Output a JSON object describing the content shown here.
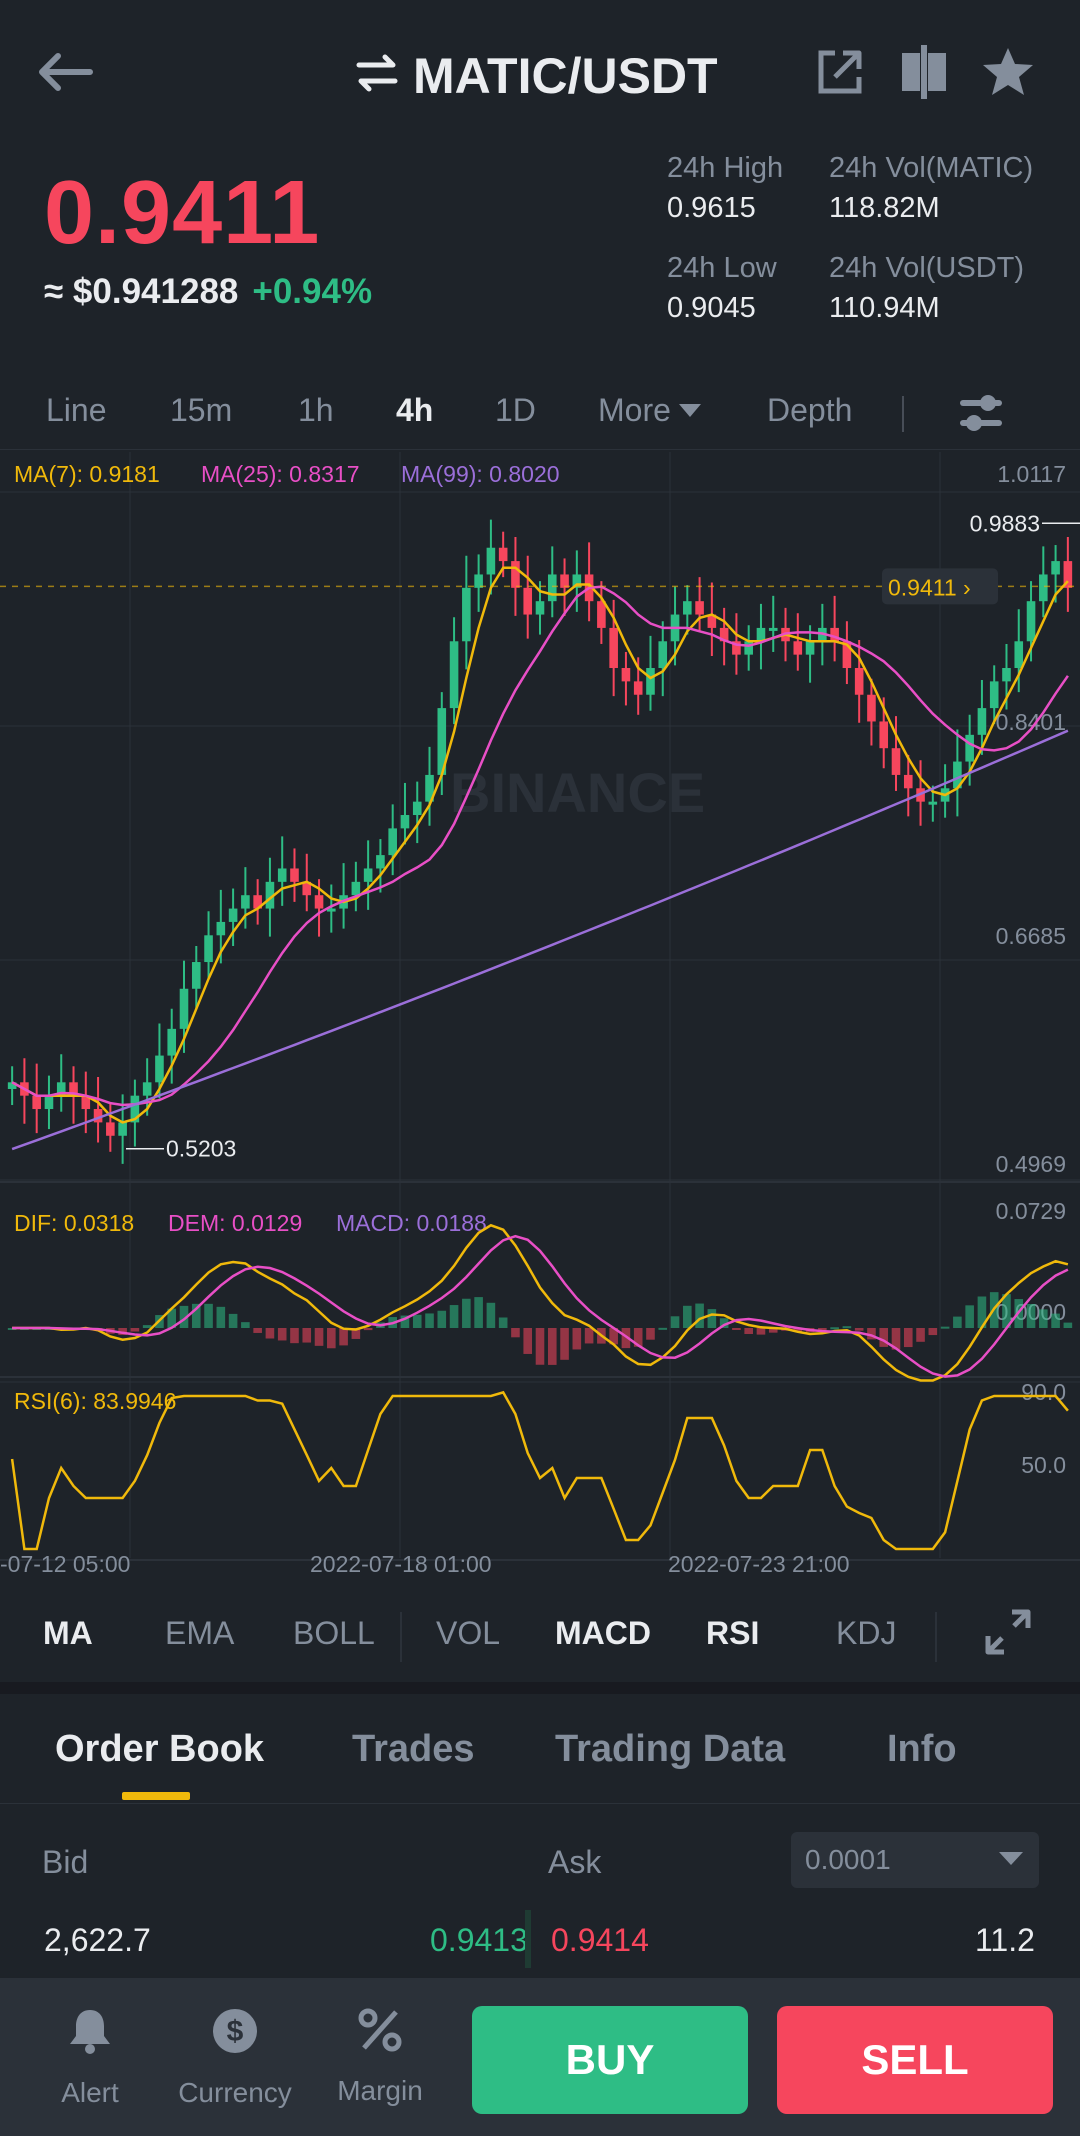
{
  "header": {
    "pair": "MATIC/USDT"
  },
  "ticker": {
    "last_price": "0.9411",
    "usd_price": "≈ $0.941288",
    "change_pct": "+0.94%",
    "stats": [
      {
        "label": "24h High",
        "value": "0.9615"
      },
      {
        "label": "24h Vol(MATIC)",
        "value": "118.82M"
      },
      {
        "label": "24h Low",
        "value": "0.9045"
      },
      {
        "label": "24h Vol(USDT)",
        "value": "110.94M"
      }
    ]
  },
  "timeframes": {
    "items": [
      "Line",
      "15m",
      "1h",
      "4h",
      "1D",
      "More",
      "Depth"
    ],
    "active": "4h"
  },
  "chart": {
    "watermark": "BINANCE",
    "ma_legend": [
      {
        "label": "MA(7): 0.9181",
        "color": "#f0b90b"
      },
      {
        "label": "MA(25): 0.8317",
        "color": "#e84fc6"
      },
      {
        "label": "MA(99): 0.8020",
        "color": "#9b6fd9"
      }
    ],
    "price_axis": [
      "1.0117",
      "0.8401",
      "0.6685",
      "0.4969"
    ],
    "high_marker": "0.9883",
    "low_marker": "0.5203",
    "current_marker": "0.9411",
    "macd_legend": [
      {
        "label": "DIF: 0.0318",
        "color": "#f0b90b"
      },
      {
        "label": "DEM: 0.0129",
        "color": "#e84fc6"
      },
      {
        "label": "MACD: 0.0188",
        "color": "#9b6fd9"
      }
    ],
    "macd_axis": [
      "0.0729",
      "0.0000"
    ],
    "rsi_legend": "RSI(6): 83.9946",
    "rsi_axis": [
      "90.0",
      "50.0"
    ],
    "time_axis": [
      "-07-12 05:00",
      "2022-07-18 01:00",
      "2022-07-23 21:00"
    ]
  },
  "chart_data": {
    "type": "candlestick",
    "title": "",
    "y_range": [
      0.4969,
      1.0117
    ],
    "price_close_series": [
      0.57,
      0.56,
      0.55,
      0.56,
      0.57,
      0.56,
      0.55,
      0.54,
      0.53,
      0.54,
      0.56,
      0.57,
      0.59,
      0.61,
      0.64,
      0.66,
      0.68,
      0.69,
      0.7,
      0.71,
      0.7,
      0.72,
      0.73,
      0.72,
      0.71,
      0.7,
      0.7,
      0.71,
      0.72,
      0.73,
      0.74,
      0.76,
      0.77,
      0.78,
      0.8,
      0.85,
      0.9,
      0.94,
      0.95,
      0.97,
      0.96,
      0.94,
      0.92,
      0.93,
      0.95,
      0.94,
      0.95,
      0.93,
      0.91,
      0.88,
      0.87,
      0.86,
      0.88,
      0.9,
      0.92,
      0.93,
      0.92,
      0.91,
      0.9,
      0.89,
      0.9,
      0.91,
      0.91,
      0.9,
      0.89,
      0.9,
      0.91,
      0.9,
      0.88,
      0.86,
      0.84,
      0.82,
      0.8,
      0.79,
      0.78,
      0.78,
      0.79,
      0.81,
      0.83,
      0.85,
      0.87,
      0.88,
      0.9,
      0.93,
      0.95,
      0.96,
      0.94
    ],
    "ma7_last": 0.9181,
    "ma25_last": 0.8317,
    "ma99_last": 0.802,
    "dif_last": 0.0318,
    "dem_last": 0.0129,
    "macd_last": 0.0188,
    "rsi6_last": 83.9946
  },
  "indicators": {
    "items": [
      "MA",
      "EMA",
      "BOLL",
      "VOL",
      "MACD",
      "RSI",
      "KDJ"
    ],
    "active": [
      "MA",
      "MACD",
      "RSI"
    ]
  },
  "tabs": {
    "items": [
      "Order Book",
      "Trades",
      "Trading Data",
      "Info"
    ],
    "active": "Order Book"
  },
  "orderbook": {
    "bid_label": "Bid",
    "ask_label": "Ask",
    "precision": "0.0001",
    "rows": [
      {
        "bid_qty": "2,622.7",
        "bid_price": "0.9413",
        "ask_price": "0.9414",
        "ask_qty": "11.2"
      }
    ]
  },
  "bottom_nav": {
    "alert": "Alert",
    "currency": "Currency",
    "margin": "Margin",
    "buy": "BUY",
    "sell": "SELL"
  },
  "colors": {
    "green": "#2ebd85",
    "red": "#f6465d",
    "yellow": "#f0b90b",
    "bg": "#1e2329"
  }
}
